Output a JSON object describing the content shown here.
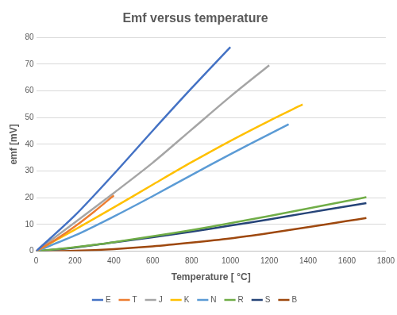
{
  "chart_data": {
    "type": "line",
    "title": "Emf versus temperature",
    "x_label": "Temperature [ °C]",
    "y_label": "emf [mV]",
    "xlim": [
      0,
      1800
    ],
    "xticks": [
      0,
      200,
      400,
      600,
      800,
      1000,
      1200,
      1400,
      1600,
      1800
    ],
    "ylim": [
      0,
      80
    ],
    "yticks": [
      0,
      10,
      20,
      30,
      40,
      50,
      60,
      70,
      80
    ],
    "grid": true,
    "legend": "bottom",
    "series": [
      {
        "name": "E",
        "color": "#4472c4",
        "x": [
          0,
          200,
          400,
          600,
          800,
          1000
        ],
        "values": [
          0,
          13.4,
          28.9,
          45.1,
          61.0,
          76.4
        ]
      },
      {
        "name": "T",
        "color": "#ed7d31",
        "x": [
          0,
          100,
          200,
          300,
          400
        ],
        "values": [
          0,
          4.3,
          9.3,
          14.9,
          20.9
        ]
      },
      {
        "name": "J",
        "color": "#a5a5a5",
        "x": [
          0,
          200,
          400,
          600,
          800,
          1000,
          1200
        ],
        "values": [
          0,
          10.8,
          21.8,
          33.1,
          45.5,
          57.9,
          69.6
        ]
      },
      {
        "name": "K",
        "color": "#ffc000",
        "x": [
          0,
          200,
          400,
          600,
          800,
          1000,
          1200,
          1372
        ],
        "values": [
          0,
          8.1,
          16.4,
          24.9,
          33.3,
          41.3,
          48.8,
          54.9
        ]
      },
      {
        "name": "N",
        "color": "#5b9bd5",
        "x": [
          0,
          200,
          400,
          600,
          800,
          1000,
          1200,
          1300
        ],
        "values": [
          0,
          5.9,
          13.0,
          20.6,
          28.5,
          36.3,
          43.8,
          47.5
        ]
      },
      {
        "name": "R",
        "color": "#70ad47",
        "x": [
          0,
          200,
          400,
          600,
          800,
          1000,
          1200,
          1400,
          1600,
          1700
        ],
        "values": [
          0,
          1.5,
          3.4,
          5.6,
          7.9,
          10.5,
          13.2,
          16.0,
          18.8,
          20.2
        ]
      },
      {
        "name": "S",
        "color": "#264478",
        "x": [
          0,
          200,
          400,
          600,
          800,
          1000,
          1200,
          1400,
          1600,
          1700
        ],
        "values": [
          0,
          1.4,
          3.3,
          5.2,
          7.3,
          9.6,
          11.9,
          14.4,
          16.8,
          18.0
        ]
      },
      {
        "name": "B",
        "color": "#9e480e",
        "x": [
          0,
          200,
          400,
          600,
          800,
          1000,
          1200,
          1400,
          1600,
          1700
        ],
        "values": [
          0,
          0.2,
          0.8,
          1.8,
          3.2,
          4.8,
          6.8,
          9.0,
          11.3,
          12.4
        ]
      }
    ]
  }
}
